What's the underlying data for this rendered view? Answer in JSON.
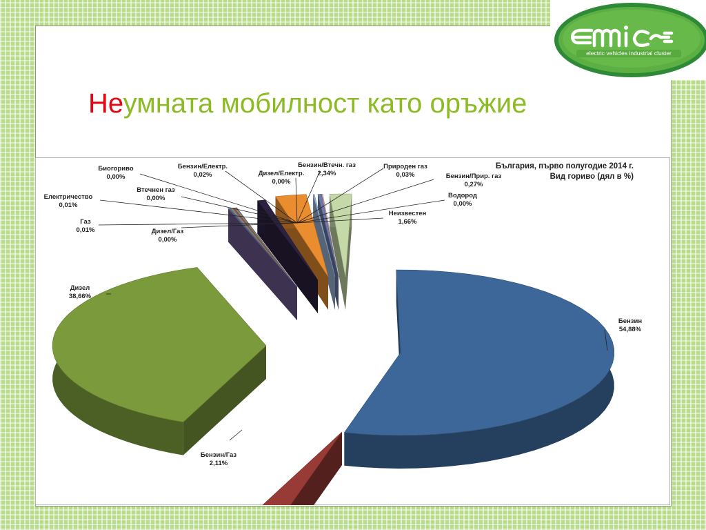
{
  "slide": {
    "title_prefix": "Не",
    "title_rest": "умната мобилност като оръжие"
  },
  "logo": {
    "subtitle": "electric vehicles industrial cluster",
    "color": "#46a83a"
  },
  "chart_data": {
    "type": "pie",
    "title": "България, първо полугодие 2014 г.",
    "subtitle": "Вид гориво (дял в %)",
    "slices": [
      {
        "label": "Бензин",
        "value": 54.88,
        "value_label": "54,88%",
        "color": "#3c6798"
      },
      {
        "label": "Бензин/Газ",
        "value": 2.11,
        "value_label": "2,11%",
        "color": "#983a35"
      },
      {
        "label": "Дизел",
        "value": 38.66,
        "value_label": "38,66%",
        "color": "#7b9a3c"
      },
      {
        "label": "Дизел/Газ",
        "value": 0.0,
        "value_label": "0,00%",
        "color": "#6f5a8f"
      },
      {
        "label": "Газ",
        "value": 0.01,
        "value_label": "0,01%",
        "color": "#3a9bb0"
      },
      {
        "label": "Електричество",
        "value": 0.01,
        "value_label": "0,01%",
        "color": "#e08b2b"
      },
      {
        "label": "Втечнен газ",
        "value": 0.0,
        "value_label": "0,00%",
        "color": "#4a7ab8"
      },
      {
        "label": "Биогориво",
        "value": 0.0,
        "value_label": "0,00%",
        "color": "#b84a47"
      },
      {
        "label": "Бензин/Електр.",
        "value": 0.02,
        "value_label": "0,02%",
        "color": "#8ab04a"
      },
      {
        "label": "Дизел/Електр.",
        "value": 0.0,
        "value_label": "0,00%",
        "color": "#7a5fa5"
      },
      {
        "label": "Дизел/Електр.",
        "value": 0.6,
        "value_label": "",
        "color": "#2c2140",
        "unlabeled": true
      },
      {
        "label": "Бензин/Втечн. газ",
        "value": 2.34,
        "value_label": "2,34%",
        "color": "#e98d2f"
      },
      {
        "label": "Природен газ",
        "value": 0.03,
        "value_label": "0,03%",
        "color": "#9ab6d9"
      },
      {
        "label": "Бензин/Прир. газ",
        "value": 0.27,
        "value_label": "0,27%",
        "color": "#6b7aa8"
      },
      {
        "label": "Водород",
        "value": 0.0,
        "value_label": "0,00%",
        "color": "#d9a0a0"
      },
      {
        "label": "Неизвестен",
        "value": 1.66,
        "value_label": "1,66%",
        "color": "#c5d8a8"
      }
    ]
  }
}
